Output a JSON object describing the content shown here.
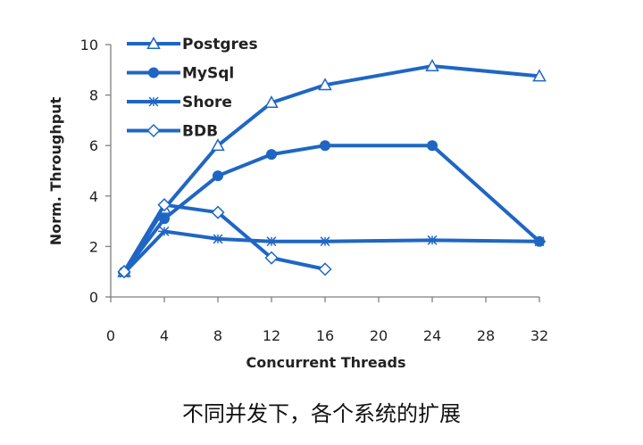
{
  "chart_data": {
    "type": "line",
    "title": "",
    "xlabel": "Concurrent Threads",
    "ylabel": "Norm. Throughput",
    "xlim": [
      0,
      32
    ],
    "ylim": [
      0,
      10
    ],
    "xticks": [
      0,
      4,
      8,
      12,
      16,
      20,
      24,
      28,
      32
    ],
    "yticks": [
      0,
      2,
      4,
      6,
      8,
      10
    ],
    "grid": false,
    "legend_position": "top-left",
    "series": [
      {
        "name": "Postgres",
        "marker": "triangle",
        "color": "#1f66c4",
        "x": [
          1,
          4,
          8,
          12,
          16,
          24,
          32
        ],
        "y": [
          1.0,
          3.5,
          6.0,
          7.7,
          8.4,
          9.15,
          8.75
        ]
      },
      {
        "name": "MySql",
        "marker": "circle",
        "color": "#1f66c4",
        "x": [
          1,
          4,
          8,
          12,
          16,
          24,
          32
        ],
        "y": [
          1.0,
          3.1,
          4.8,
          5.65,
          6.0,
          6.0,
          2.2
        ]
      },
      {
        "name": "Shore",
        "marker": "star",
        "color": "#1f66c4",
        "x": [
          1,
          4,
          8,
          12,
          16,
          24,
          32
        ],
        "y": [
          0.95,
          2.6,
          2.3,
          2.2,
          2.2,
          2.25,
          2.2
        ]
      },
      {
        "name": "BDB",
        "marker": "diamond",
        "color": "#1f66c4",
        "x": [
          1,
          4,
          8,
          12,
          16
        ],
        "y": [
          1.0,
          3.65,
          3.35,
          1.55,
          1.1
        ]
      }
    ]
  },
  "caption": "不同并发下，各个系统的扩展"
}
